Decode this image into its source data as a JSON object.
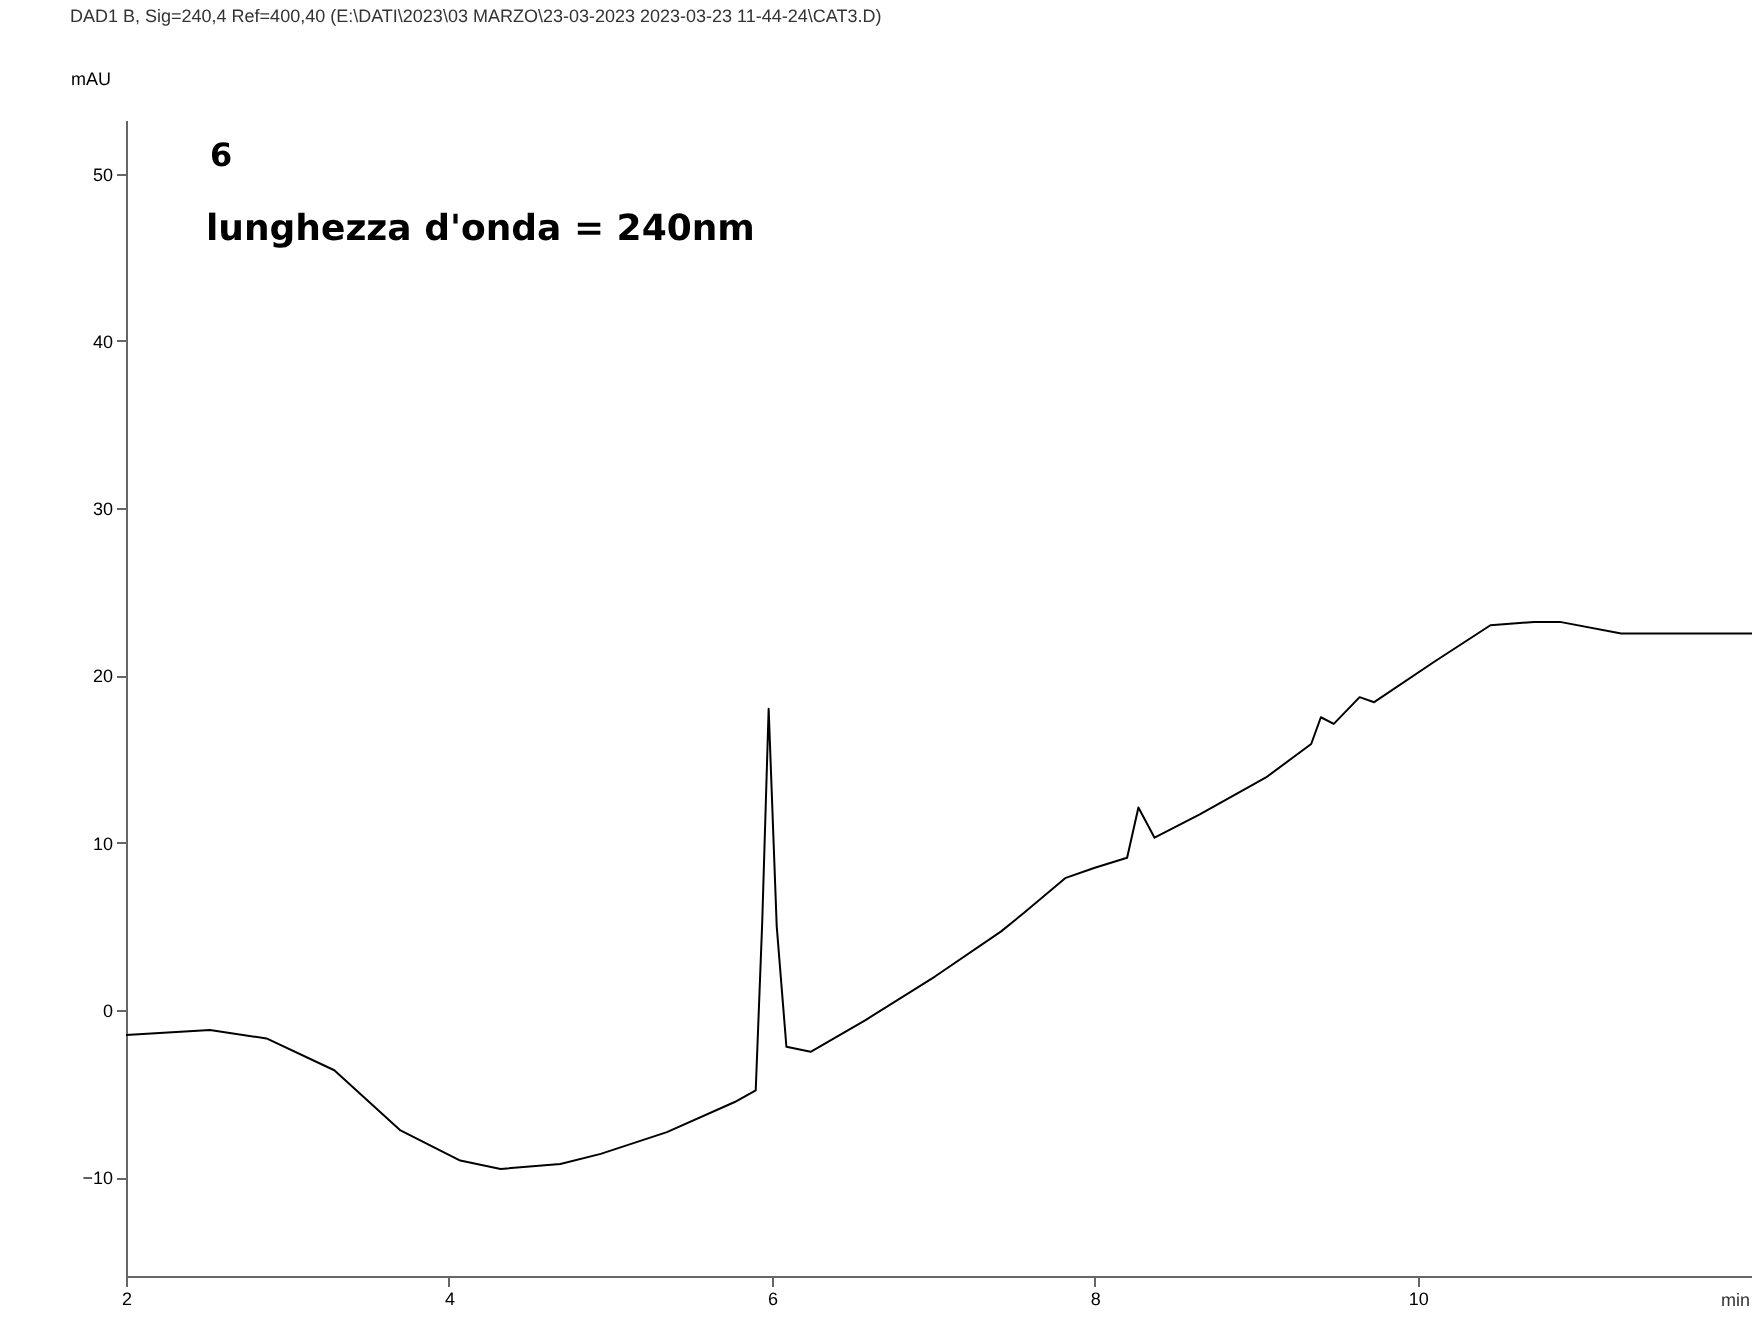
{
  "chart_data": {
    "type": "line",
    "title": "DAD1 B, Sig=240,4 Ref=400,40 (E:\\DATI\\2023\\03 MARZO\\23-03-2023 2023-03-23 11-44-24\\CAT3.D)",
    "xlabel": "min",
    "ylabel": "mAU",
    "annotations": [
      "6",
      "lunghezza d'onda = 240nm"
    ],
    "series": [
      {
        "color": "#000000",
        "x": [
          2.0,
          2.52,
          2.87,
          3.29,
          3.7,
          4.07,
          4.32,
          4.69,
          4.94,
          5.35,
          5.77,
          5.9,
          5.94,
          5.98,
          6.03,
          6.09,
          6.24,
          6.58,
          7.01,
          7.42,
          7.56,
          7.82,
          8.0,
          8.2,
          8.27,
          8.37,
          8.65,
          9.06,
          9.34,
          9.4,
          9.48,
          9.64,
          9.73,
          10.1,
          10.45,
          10.72,
          10.88,
          11.26,
          12.07
        ],
        "values": [
          -1.5,
          -1.2,
          -1.7,
          -3.6,
          -7.2,
          -9.0,
          -9.5,
          -9.2,
          -8.6,
          -7.3,
          -5.5,
          -4.8,
          5.2,
          18.0,
          5.0,
          -2.2,
          -2.5,
          -0.6,
          2.0,
          4.7,
          5.8,
          7.9,
          8.5,
          9.1,
          12.1,
          10.3,
          11.7,
          13.9,
          15.9,
          17.5,
          17.1,
          18.7,
          18.4,
          20.8,
          23.0,
          23.2,
          23.2,
          22.5,
          22.5
        ]
      }
    ],
    "xlim": [
      2,
      12.07
    ],
    "xticks": [
      2,
      4,
      6,
      8,
      10
    ],
    "ylim": [
      -15.9,
      53.2
    ],
    "yticks": [
      -10,
      0,
      10,
      20,
      30,
      40,
      50
    ],
    "grid": false,
    "legend": false,
    "marker": "none",
    "line_style": "solid"
  }
}
